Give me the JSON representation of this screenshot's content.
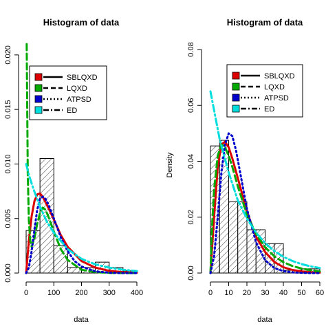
{
  "chart_data": [
    {
      "type": "histogram",
      "title": "Histogram of data",
      "xlabel": "data",
      "ylabel": "",
      "xlim": [
        0,
        400
      ],
      "ylim": [
        0,
        0.021
      ],
      "x_ticks": [
        0,
        100,
        200,
        300,
        400
      ],
      "y_ticks": [
        0.0,
        0.005,
        0.01,
        0.015,
        0.02
      ],
      "x_tick_labels": [
        "0",
        "100",
        "200",
        "300",
        "400"
      ],
      "y_tick_labels": [
        "0.000",
        "0.005",
        "0.010",
        "0.015",
        "0.020"
      ],
      "bins": [
        0,
        50,
        100,
        150,
        200,
        250,
        300,
        350,
        400
      ],
      "density": [
        0.0039,
        0.0105,
        0.0025,
        0.0005,
        0.0005,
        0.001,
        0.0005,
        0.0002
      ],
      "legend_position": "top-right",
      "series": [
        {
          "name": "SBLQXD",
          "color": "#dd0000",
          "style": "solid",
          "x": [
            0,
            10,
            20,
            30,
            40,
            50,
            60,
            80,
            100,
            125,
            150,
            200,
            250,
            300,
            350,
            400
          ],
          "y": [
            0.0,
            0.003,
            0.0052,
            0.0066,
            0.0072,
            0.0073,
            0.007,
            0.006,
            0.0049,
            0.0035,
            0.0024,
            0.0011,
            0.0005,
            0.0002,
            8e-05,
            3e-05
          ]
        },
        {
          "name": "LQXD",
          "color": "#00aa00",
          "style": "dashed",
          "x": [
            2,
            4,
            6,
            10,
            15,
            20,
            30,
            40,
            50,
            60,
            70,
            80,
            100,
            125,
            150,
            200,
            250,
            300,
            350,
            400
          ],
          "y": [
            0.021,
            0.015,
            0.009,
            0.0048,
            0.003,
            0.0024,
            0.0032,
            0.0045,
            0.0055,
            0.006,
            0.0058,
            0.0052,
            0.0038,
            0.0022,
            0.0012,
            0.0003,
            8e-05,
            2e-05,
            0.0,
            0.0
          ]
        },
        {
          "name": "ATPSD",
          "color": "#0000cc",
          "style": "dotted",
          "x": [
            0,
            10,
            20,
            30,
            40,
            50,
            60,
            70,
            80,
            100,
            125,
            150,
            175,
            200,
            250,
            300,
            350,
            400
          ],
          "y": [
            0.0,
            0.0005,
            0.002,
            0.004,
            0.0058,
            0.0068,
            0.007,
            0.0068,
            0.0063,
            0.005,
            0.0033,
            0.002,
            0.0011,
            0.0006,
            0.00015,
            3e-05,
            0.0,
            0.0
          ]
        },
        {
          "name": "ED",
          "color": "#00dddd",
          "style": "dotdash",
          "x": [
            0,
            10,
            25,
            50,
            75,
            100,
            150,
            200,
            250,
            300,
            350,
            400
          ],
          "y": [
            0.01,
            0.009,
            0.0078,
            0.0061,
            0.0047,
            0.0037,
            0.0022,
            0.0013,
            0.0008,
            0.0005,
            0.0003,
            0.00018
          ]
        }
      ]
    },
    {
      "type": "histogram",
      "title": "Histogram of data",
      "xlabel": "data",
      "ylabel": "Density",
      "xlim": [
        0,
        60
      ],
      "ylim": [
        0,
        0.08
      ],
      "x_ticks": [
        0,
        10,
        20,
        30,
        40,
        50,
        60
      ],
      "y_ticks": [
        0.0,
        0.02,
        0.04,
        0.06,
        0.08
      ],
      "x_tick_labels": [
        "0",
        "10",
        "20",
        "30",
        "40",
        "50",
        "60"
      ],
      "y_tick_labels": [
        "0.00",
        "0.02",
        "0.04",
        "0.06",
        "0.08"
      ],
      "bins": [
        0,
        5,
        10,
        15,
        20,
        25,
        30,
        35,
        40,
        45,
        50,
        55,
        60
      ],
      "density": [
        0.0455,
        0.0475,
        0.0255,
        0.0255,
        0.0155,
        0.0155,
        0.0105,
        0.0105,
        0.001,
        0.001,
        0.0015,
        0.0015
      ],
      "legend_position": "top-right",
      "series": [
        {
          "name": "SBLQXD",
          "color": "#dd0000",
          "style": "solid",
          "x": [
            0,
            2,
            4,
            6,
            8,
            10,
            12,
            15,
            20,
            25,
            30,
            35,
            40,
            45,
            50,
            55,
            60
          ],
          "y": [
            0.0,
            0.02,
            0.038,
            0.046,
            0.047,
            0.045,
            0.041,
            0.034,
            0.022,
            0.013,
            0.0075,
            0.004,
            0.0021,
            0.0011,
            0.0006,
            0.0003,
            0.00015
          ]
        },
        {
          "name": "LQXD",
          "color": "#00aa00",
          "style": "dashed",
          "x": [
            0,
            1,
            2,
            4,
            6,
            8,
            10,
            12,
            15,
            20,
            25,
            30,
            35,
            40,
            45,
            50,
            55,
            60
          ],
          "y": [
            0.0,
            0.018,
            0.03,
            0.042,
            0.046,
            0.045,
            0.042,
            0.038,
            0.031,
            0.021,
            0.014,
            0.0092,
            0.006,
            0.0039,
            0.0025,
            0.0016,
            0.001,
            0.0006
          ]
        },
        {
          "name": "ATPSD",
          "color": "#0000cc",
          "style": "dotted",
          "x": [
            0,
            2,
            4,
            6,
            8,
            10,
            12,
            14,
            16,
            20,
            25,
            30,
            35,
            40,
            45,
            50,
            55,
            60
          ],
          "y": [
            0.0,
            0.006,
            0.02,
            0.036,
            0.046,
            0.05,
            0.049,
            0.044,
            0.037,
            0.023,
            0.011,
            0.0046,
            0.0018,
            0.0007,
            0.00025,
            0.0001,
            0.0,
            0.0
          ]
        },
        {
          "name": "ED",
          "color": "#00dddd",
          "style": "dotdash",
          "x": [
            0,
            5,
            10,
            15,
            20,
            25,
            30,
            35,
            40,
            45,
            50,
            55,
            60
          ],
          "y": [
            0.065,
            0.048,
            0.036,
            0.026,
            0.0195,
            0.0145,
            0.0107,
            0.0079,
            0.0058,
            0.0043,
            0.0032,
            0.0024,
            0.0018
          ]
        }
      ]
    }
  ]
}
